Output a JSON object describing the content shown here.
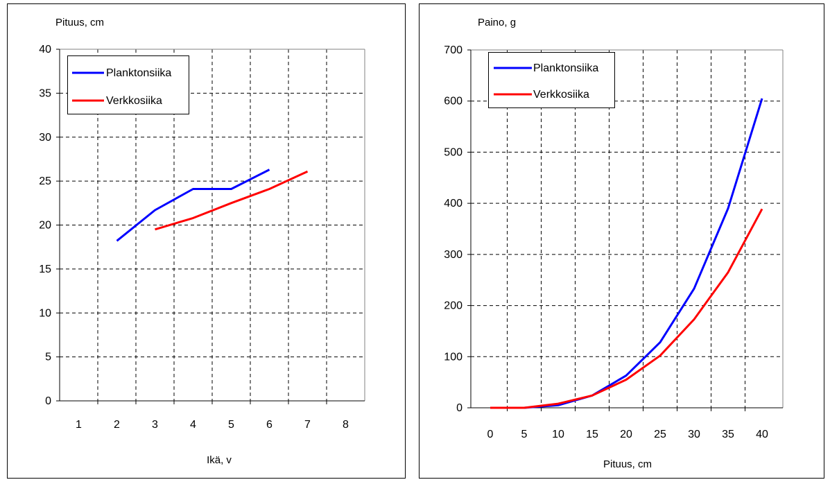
{
  "chart_data": [
    {
      "type": "line",
      "ylabel": "Pituus, cm",
      "xlabel": "Ikä, v",
      "ylim": [
        0,
        40
      ],
      "yticks": [
        "0",
        "5",
        "10",
        "15",
        "20",
        "25",
        "30",
        "35",
        "40"
      ],
      "categories": [
        "1",
        "2",
        "3",
        "4",
        "5",
        "6",
        "7",
        "8"
      ],
      "grid": true,
      "legend_position": "top-left",
      "series": [
        {
          "name": "Planktonsiika",
          "color": "#0000ff",
          "points": [
            [
              2,
              18.2
            ],
            [
              3,
              21.7
            ],
            [
              4,
              24.1
            ],
            [
              5,
              24.1
            ],
            [
              6,
              26.3
            ]
          ]
        },
        {
          "name": "Verkkosiika",
          "color": "#ff0000",
          "points": [
            [
              3,
              19.5
            ],
            [
              4,
              20.8
            ],
            [
              5,
              22.5
            ],
            [
              6,
              24.1
            ],
            [
              7,
              26.1
            ]
          ]
        }
      ]
    },
    {
      "type": "line",
      "ylabel": "Paino, g",
      "xlabel": "Pituus, cm",
      "ylim": [
        0,
        700
      ],
      "yticks": [
        "0",
        "100",
        "200",
        "300",
        "400",
        "500",
        "600",
        "700"
      ],
      "categories": [
        "0",
        "5",
        "10",
        "15",
        "20",
        "25",
        "30",
        "35",
        "40"
      ],
      "grid": true,
      "legend_position": "top-left",
      "series": [
        {
          "name": "Planktonsiika",
          "color": "#0000ff",
          "points": [
            [
              0,
              0
            ],
            [
              5,
              0
            ],
            [
              10,
              5
            ],
            [
              15,
              24
            ],
            [
              20,
              63
            ],
            [
              25,
              128
            ],
            [
              30,
              233
            ],
            [
              35,
              390
            ],
            [
              40,
              605
            ]
          ]
        },
        {
          "name": "Verkkosiika",
          "color": "#ff0000",
          "points": [
            [
              0,
              0
            ],
            [
              5,
              0
            ],
            [
              10,
              8
            ],
            [
              15,
              24
            ],
            [
              20,
              55
            ],
            [
              25,
              102
            ],
            [
              30,
              173
            ],
            [
              35,
              265
            ],
            [
              40,
              389
            ]
          ]
        }
      ]
    }
  ]
}
